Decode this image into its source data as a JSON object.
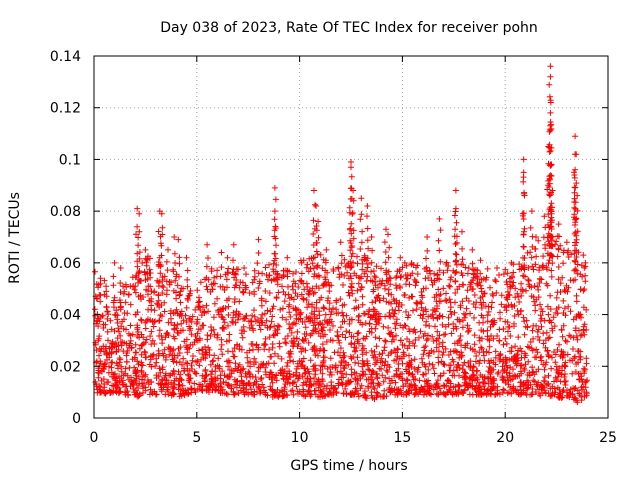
{
  "chart_data": {
    "type": "scatter",
    "title": "Day 038 of 2023, Rate Of TEC Index for receiver pohn",
    "xlabel": "GPS time / hours",
    "ylabel": "ROTI / TECUs",
    "xlim": [
      0,
      25
    ],
    "ylim": [
      0,
      0.14
    ],
    "x_ticks": [
      0,
      5,
      10,
      15,
      20,
      25
    ],
    "x_tick_labels": [
      "0",
      "5",
      "10",
      "15",
      "20",
      "25"
    ],
    "y_ticks": [
      0,
      0.02,
      0.04,
      0.06,
      0.08,
      0.1,
      0.12,
      0.14
    ],
    "y_tick_labels": [
      "0",
      "0.02",
      "0.04",
      "0.06",
      "0.08",
      "0.1",
      "0.12",
      "0.14"
    ],
    "grid": true,
    "marker": "plus",
    "color": "#ff0000",
    "series": [
      {
        "name": "ROTI",
        "envelope_x": [
          0,
          0.5,
          1,
          1.5,
          2,
          2.5,
          3,
          3.5,
          4,
          4.5,
          5,
          5.5,
          6,
          6.5,
          7,
          7.5,
          8,
          8.5,
          9,
          9.5,
          10,
          10.5,
          11,
          11.5,
          12,
          12.5,
          13,
          13.5,
          14,
          14.5,
          15,
          15.5,
          16,
          16.5,
          17,
          17.5,
          18,
          18.5,
          19,
          19.5,
          20,
          20.5,
          21,
          21.5,
          22,
          22.5,
          23,
          23.5,
          24
        ],
        "envelope_low": [
          0.01,
          0.009,
          0.01,
          0.009,
          0.008,
          0.009,
          0.008,
          0.009,
          0.008,
          0.009,
          0.01,
          0.01,
          0.01,
          0.009,
          0.009,
          0.009,
          0.009,
          0.008,
          0.008,
          0.009,
          0.009,
          0.008,
          0.008,
          0.009,
          0.009,
          0.009,
          0.008,
          0.007,
          0.008,
          0.009,
          0.009,
          0.009,
          0.009,
          0.009,
          0.009,
          0.009,
          0.009,
          0.009,
          0.009,
          0.009,
          0.009,
          0.009,
          0.009,
          0.009,
          0.008,
          0.008,
          0.007,
          0.006,
          0.008
        ],
        "envelope_high": [
          0.045,
          0.042,
          0.036,
          0.04,
          0.048,
          0.052,
          0.05,
          0.046,
          0.045,
          0.036,
          0.04,
          0.046,
          0.047,
          0.047,
          0.046,
          0.043,
          0.048,
          0.05,
          0.05,
          0.047,
          0.049,
          0.05,
          0.052,
          0.049,
          0.052,
          0.047,
          0.054,
          0.049,
          0.048,
          0.044,
          0.048,
          0.049,
          0.048,
          0.044,
          0.048,
          0.05,
          0.047,
          0.046,
          0.047,
          0.044,
          0.046,
          0.048,
          0.052,
          0.056,
          0.06,
          0.058,
          0.06,
          0.052,
          0.05
        ],
        "peaks": [
          {
            "x": 0.3,
            "y": 0.045
          },
          {
            "x": 1.0,
            "y": 0.06
          },
          {
            "x": 1.3,
            "y": 0.058
          },
          {
            "x": 2.1,
            "y": 0.081
          },
          {
            "x": 2.2,
            "y": 0.079
          },
          {
            "x": 2.5,
            "y": 0.065
          },
          {
            "x": 3.2,
            "y": 0.08
          },
          {
            "x": 3.3,
            "y": 0.079
          },
          {
            "x": 3.6,
            "y": 0.065
          },
          {
            "x": 3.9,
            "y": 0.07
          },
          {
            "x": 4.1,
            "y": 0.069
          },
          {
            "x": 4.5,
            "y": 0.062
          },
          {
            "x": 5.5,
            "y": 0.067
          },
          {
            "x": 6.2,
            "y": 0.064
          },
          {
            "x": 6.5,
            "y": 0.062
          },
          {
            "x": 6.8,
            "y": 0.067
          },
          {
            "x": 7.3,
            "y": 0.058
          },
          {
            "x": 8.0,
            "y": 0.069
          },
          {
            "x": 8.8,
            "y": 0.089
          },
          {
            "x": 8.8,
            "y": 0.08
          },
          {
            "x": 9.4,
            "y": 0.062
          },
          {
            "x": 10.1,
            "y": 0.06
          },
          {
            "x": 10.7,
            "y": 0.088
          },
          {
            "x": 10.8,
            "y": 0.082
          },
          {
            "x": 10.9,
            "y": 0.076
          },
          {
            "x": 11.3,
            "y": 0.065
          },
          {
            "x": 12.0,
            "y": 0.068
          },
          {
            "x": 12.5,
            "y": 0.099
          },
          {
            "x": 12.5,
            "y": 0.097
          },
          {
            "x": 12.6,
            "y": 0.088
          },
          {
            "x": 13.0,
            "y": 0.085
          },
          {
            "x": 13.3,
            "y": 0.082
          },
          {
            "x": 13.5,
            "y": 0.07
          },
          {
            "x": 14.2,
            "y": 0.073
          },
          {
            "x": 14.3,
            "y": 0.071
          },
          {
            "x": 14.9,
            "y": 0.062
          },
          {
            "x": 15.4,
            "y": 0.055
          },
          {
            "x": 16.2,
            "y": 0.07
          },
          {
            "x": 16.8,
            "y": 0.077
          },
          {
            "x": 17.6,
            "y": 0.088
          },
          {
            "x": 17.6,
            "y": 0.081
          },
          {
            "x": 17.9,
            "y": 0.072
          },
          {
            "x": 18.4,
            "y": 0.065
          },
          {
            "x": 18.8,
            "y": 0.061
          },
          {
            "x": 19.6,
            "y": 0.058
          },
          {
            "x": 20.3,
            "y": 0.06
          },
          {
            "x": 20.9,
            "y": 0.1
          },
          {
            "x": 20.9,
            "y": 0.095
          },
          {
            "x": 21.3,
            "y": 0.08
          },
          {
            "x": 21.5,
            "y": 0.07
          },
          {
            "x": 21.9,
            "y": 0.078
          },
          {
            "x": 22.2,
            "y": 0.136
          },
          {
            "x": 22.2,
            "y": 0.132
          },
          {
            "x": 22.2,
            "y": 0.118
          },
          {
            "x": 22.1,
            "y": 0.105
          },
          {
            "x": 22.2,
            "y": 0.098
          },
          {
            "x": 22.3,
            "y": 0.088
          },
          {
            "x": 22.6,
            "y": 0.075
          },
          {
            "x": 23.0,
            "y": 0.068
          },
          {
            "x": 23.4,
            "y": 0.109
          },
          {
            "x": 23.4,
            "y": 0.102
          },
          {
            "x": 23.4,
            "y": 0.096
          },
          {
            "x": 23.5,
            "y": 0.086
          },
          {
            "x": 23.8,
            "y": 0.063
          },
          {
            "x": 23.9,
            "y": 0.06
          }
        ]
      }
    ]
  }
}
